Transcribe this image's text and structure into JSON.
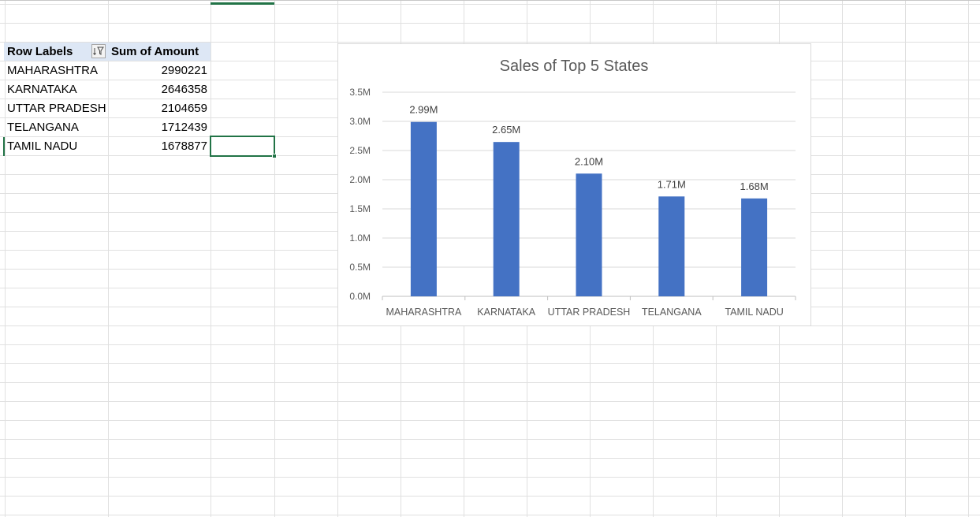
{
  "pivot": {
    "header": {
      "row_labels": "Row Labels",
      "sum_label": "Sum of Amount",
      "filter_icon": "filter-sort-icon"
    },
    "rows": [
      {
        "label": "MAHARASHTRA",
        "value": "2990221"
      },
      {
        "label": "KARNATAKA",
        "value": "2646358"
      },
      {
        "label": "UTTAR PRADESH",
        "value": "2104659"
      },
      {
        "label": "TELANGANA",
        "value": "1712439"
      },
      {
        "label": "TAMIL NADU",
        "value": "1678877"
      }
    ]
  },
  "colors": {
    "bar": "#4472c4",
    "gridline": "#e0e0e0",
    "selection": "#217346",
    "pivot_header": "#dde7f5",
    "chart_title": "#595959",
    "axis_text": "#595959"
  },
  "chart_data": {
    "type": "bar",
    "title": "Sales of Top 5 States",
    "xlabel": "",
    "ylabel": "",
    "categories": [
      "MAHARASHTRA",
      "KARNATAKA",
      "UTTAR PRADESH",
      "TELANGANA",
      "TAMIL NADU"
    ],
    "values": [
      2990221,
      2646358,
      2104659,
      1712439,
      1678877
    ],
    "data_labels": [
      "2.99M",
      "2.65M",
      "2.10M",
      "1.71M",
      "1.68M"
    ],
    "ylim": [
      0,
      3500000
    ],
    "yticks": [
      0,
      500000,
      1000000,
      1500000,
      2000000,
      2500000,
      3000000,
      3500000
    ],
    "ytick_labels": [
      "0.0M",
      "0.5M",
      "1.0M",
      "1.5M",
      "2.0M",
      "2.5M",
      "3.0M",
      "3.5M"
    ],
    "grid": true,
    "legend": "none"
  }
}
